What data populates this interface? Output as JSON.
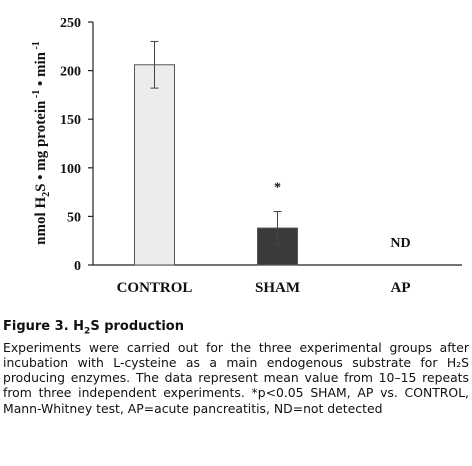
{
  "chart_data": {
    "type": "bar",
    "categories": [
      "CONTROL",
      "SHAM",
      "AP"
    ],
    "values": [
      206,
      38,
      null
    ],
    "errors": [
      24,
      17,
      null
    ],
    "annotations": [
      "",
      "*",
      "ND"
    ],
    "ylabel_parts": {
      "main": "nmol H",
      "sub1": "2",
      "mid": "S • mg protein",
      "sup1": " -1",
      "end": " • min",
      "sup2": " -1"
    },
    "ylim": [
      0,
      250
    ],
    "yticks": [
      0,
      50,
      100,
      150,
      200,
      250
    ],
    "bar_colors": [
      "#ececec",
      "#3a3a3a",
      "#ffffff"
    ],
    "grid": false
  },
  "caption": {
    "title_prefix": "Figure 3. H",
    "title_sub": "2",
    "title_suffix": "S production",
    "text": "Experiments were carried out for the three experimental groups after incubation with L-cysteine as a main endogenous substrate for H₂S producing enzymes. The data represent mean value from 10–15 repeats from three independent experiments. *p<0.05 SHAM, AP vs. CONTROL, Mann-Whitney test, AP=acute pancreatitis, ND=not detected"
  }
}
